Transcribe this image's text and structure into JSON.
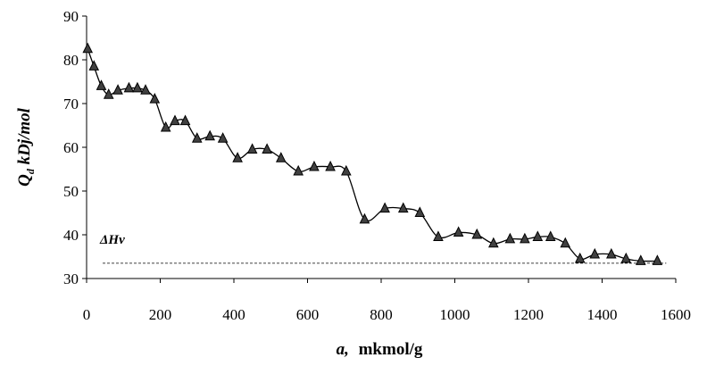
{
  "chart_data": {
    "type": "line",
    "title": "",
    "xlabel_var": "a,",
    "xlabel_unit": "mkmol/g",
    "ylabel_main": "Q",
    "ylabel_sub": "d",
    "ylabel_unit": " kDj/mol",
    "xlim": [
      0,
      1600
    ],
    "ylim": [
      30,
      90
    ],
    "xticks": [
      0,
      200,
      400,
      600,
      800,
      1000,
      1200,
      1400,
      1600
    ],
    "yticks": [
      30,
      40,
      50,
      60,
      70,
      80,
      90
    ],
    "grid": false,
    "legend": "none",
    "series": [
      {
        "name": "Qd",
        "marker": "triangle",
        "color": "#000000",
        "x": [
          3,
          20,
          40,
          60,
          85,
          115,
          138,
          160,
          185,
          215,
          240,
          268,
          300,
          335,
          370,
          410,
          450,
          490,
          528,
          575,
          618,
          662,
          705,
          755,
          810,
          860,
          905,
          955,
          1010,
          1060,
          1105,
          1150,
          1190,
          1225,
          1260,
          1300,
          1340,
          1380,
          1425,
          1465,
          1505,
          1550
        ],
        "y": [
          82.5,
          78.5,
          74,
          72,
          73,
          73.5,
          73.5,
          73,
          71,
          64.5,
          66,
          66,
          62,
          62.5,
          62,
          57.5,
          59.5,
          59.5,
          57.5,
          54.5,
          55.5,
          55.5,
          54.5,
          43.5,
          46,
          46,
          45,
          39.5,
          40.5,
          40,
          38,
          39,
          39,
          39.5,
          39.5,
          38,
          34.5,
          35.5,
          35.5,
          34.5,
          34,
          34
        ]
      }
    ],
    "reference_line": {
      "label": "ΔHv",
      "value": 33.5,
      "style": "dashed"
    }
  }
}
